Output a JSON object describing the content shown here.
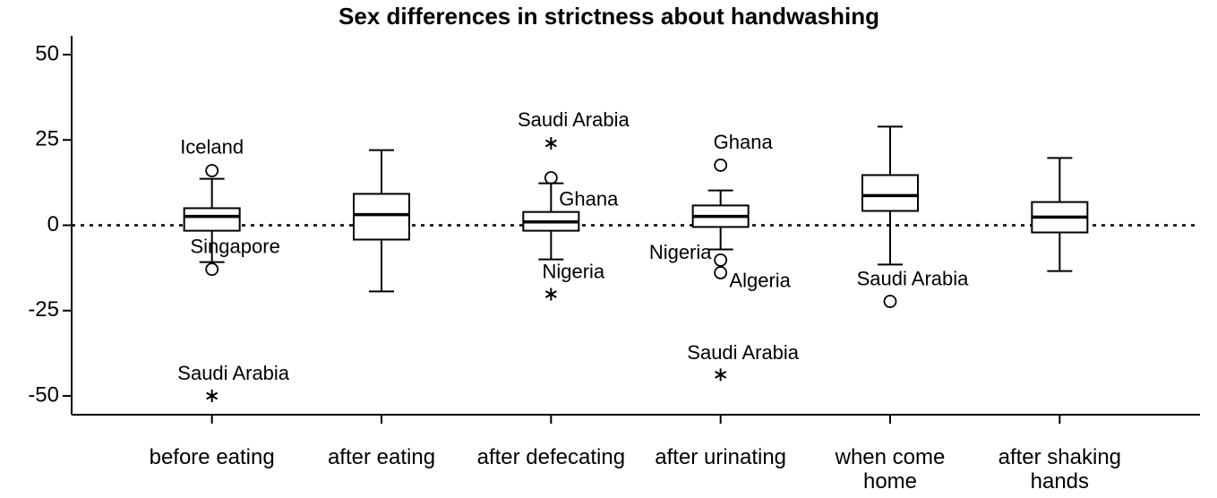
{
  "chart_data": {
    "type": "box",
    "title": "Sex differences in strictness about handwashing",
    "categories": [
      "before eating",
      "after eating",
      "after defecating",
      "after urinating",
      "when come home",
      "after shaking hands"
    ],
    "boxes": [
      {
        "whisker_low": -10.8,
        "q1": -1.6,
        "median": 2.6,
        "q3": 5,
        "whisker_high": 13.6,
        "outliers": [
          {
            "value": 16,
            "label": "Iceland",
            "marker": "circle"
          },
          {
            "value": -12.9,
            "label": "Singapore",
            "marker": "circle"
          },
          {
            "value": -50,
            "label": "Saudi Arabia",
            "marker": "star"
          }
        ]
      },
      {
        "whisker_low": -19.4,
        "q1": -4.2,
        "median": 3.1,
        "q3": 9.2,
        "whisker_high": 22,
        "outliers": []
      },
      {
        "whisker_low": -10,
        "q1": -1.6,
        "median": 1,
        "q3": 3.9,
        "whisker_high": 12.3,
        "outliers": [
          {
            "value": 13.9,
            "label": "Ghana",
            "marker": "circle"
          },
          {
            "value": 24,
            "label": "Saudi Arabia",
            "marker": "star"
          },
          {
            "value": -20.2,
            "label": "Nigeria",
            "marker": "star"
          }
        ]
      },
      {
        "whisker_low": -7.1,
        "q1": -0.5,
        "median": 2.6,
        "q3": 5.8,
        "whisker_high": 10.2,
        "outliers": [
          {
            "value": 17.6,
            "label": "Ghana",
            "marker": "circle"
          },
          {
            "value": -10.2,
            "label": "Nigeria",
            "marker": "circle"
          },
          {
            "value": -13.9,
            "label": "Algeria",
            "marker": "circle"
          },
          {
            "value": -43.8,
            "label": "Saudi Arabia",
            "marker": "star"
          }
        ]
      },
      {
        "whisker_low": -11.5,
        "q1": 4.2,
        "median": 8.7,
        "q3": 14.7,
        "whisker_high": 28.9,
        "outliers": [
          {
            "value": -22.3,
            "label": "Saudi Arabia",
            "marker": "circle"
          }
        ]
      },
      {
        "whisker_low": -13.4,
        "q1": -2.1,
        "median": 2.4,
        "q3": 6.8,
        "whisker_high": 19.7,
        "outliers": []
      }
    ],
    "reference_line": 0,
    "ylim": [
      -55.5,
      55.5
    ],
    "yticks": [
      50,
      25,
      0,
      -25,
      -50
    ]
  }
}
